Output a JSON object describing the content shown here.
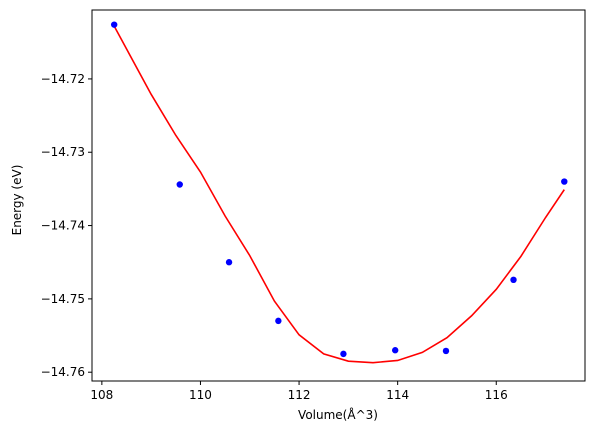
{
  "chart_data": {
    "type": "scatter",
    "title": "",
    "xlabel": "Volume(Å^3)",
    "ylabel": "Energy (eV)",
    "xlim": [
      107.8,
      117.8
    ],
    "ylim": [
      -14.7612,
      -14.7106
    ],
    "x_ticks": [
      108,
      110,
      112,
      114,
      116
    ],
    "x_tick_labels": [
      "108",
      "110",
      "112",
      "114",
      "116"
    ],
    "y_ticks": [
      -14.72,
      -14.73,
      -14.74,
      -14.75,
      -14.76
    ],
    "y_tick_labels": [
      "−14.72",
      "−14.73",
      "−14.74",
      "−14.75",
      "−14.76"
    ],
    "grid": false,
    "series": [
      {
        "kind": "points",
        "color": "#0000ff",
        "x": [
          108.25,
          109.58,
          110.58,
          111.58,
          112.9,
          113.95,
          114.98,
          116.35,
          117.38
        ],
        "y": [
          -14.7126,
          -14.7344,
          -14.745,
          -14.753,
          -14.7575,
          -14.757,
          -14.7571,
          -14.7474,
          -14.734
        ]
      },
      {
        "kind": "fit-curve",
        "color": "#ff0000",
        "x": [
          108.25,
          108.5,
          109.0,
          109.5,
          110.0,
          110.5,
          111.0,
          111.5,
          112.0,
          112.5,
          113.0,
          113.5,
          114.0,
          114.5,
          115.0,
          115.5,
          116.0,
          116.5,
          117.0,
          117.38
        ],
        "y": [
          -14.7128,
          -14.7159,
          -14.7221,
          -14.7277,
          -14.7327,
          -14.7387,
          -14.7441,
          -14.7503,
          -14.7549,
          -14.7575,
          -14.7585,
          -14.7587,
          -14.7584,
          -14.7573,
          -14.7553,
          -14.7523,
          -14.7487,
          -14.7442,
          -14.7389,
          -14.7351
        ]
      }
    ]
  }
}
